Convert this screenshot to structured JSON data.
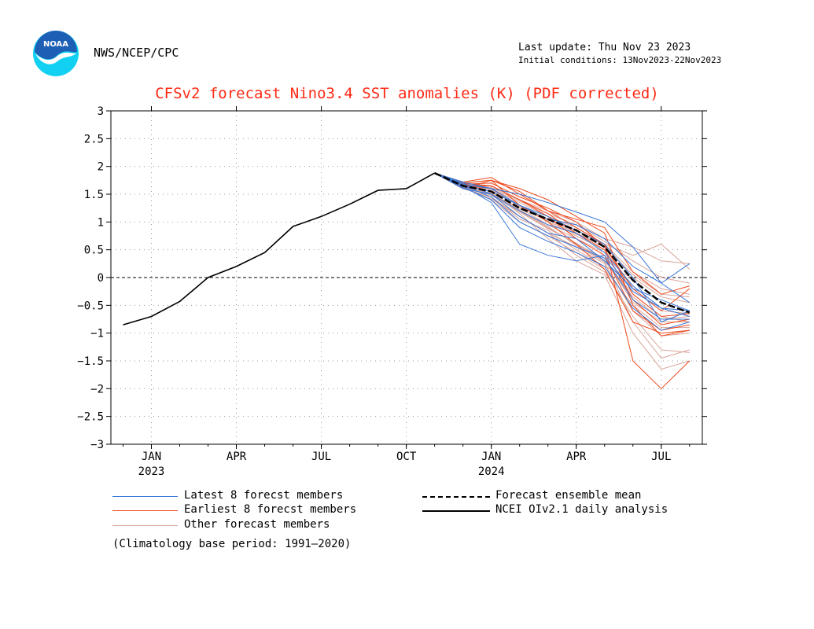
{
  "header": {
    "agency": "NWS/NCEP/CPC",
    "last_update": "Last update: Thu Nov 23 2023",
    "initial_conditions": "Initial conditions: 13Nov2023-22Nov2023",
    "logo_text": "NOAA"
  },
  "colors": {
    "latest": "#3a78d8",
    "earliest": "#ee4a1e",
    "other": "#d9a59a",
    "mean": "#000000",
    "analysis": "#000000",
    "title": "#ff2a14",
    "logo_blue": "#1d5fb5",
    "logo_cyan": "#12d0f2"
  },
  "legend": {
    "latest": "Latest 8 forecst members",
    "earliest": "Earliest 8 forecst members",
    "other": "Other forecast members",
    "mean": "Forecast ensemble mean",
    "analysis": "NCEI OIv2.1 daily analysis",
    "climatology": "(Climatology base period: 1991—2020)"
  },
  "chart_data": {
    "type": "line",
    "title": "CFSv2 forecast Nino3.4 SST anomalies (K) (PDF corrected)",
    "xlabel": "",
    "ylabel": "",
    "ylim": [
      -3,
      3
    ],
    "yticks": [
      3,
      2.5,
      2,
      1.5,
      1,
      0.5,
      0,
      -0.5,
      -1,
      -1.5,
      -2,
      -2.5,
      -3
    ],
    "ytick_labels": [
      "3",
      "2.5",
      "2",
      "1.5",
      "1",
      "0.5",
      "0",
      "−0.5",
      "−1",
      "−1.5",
      "−2",
      "−2.5",
      "−3"
    ],
    "xlim": [
      "2022-12",
      "2024-08"
    ],
    "xticks": [
      {
        "x": "2023-01",
        "label": "JAN",
        "year": "2023"
      },
      {
        "x": "2023-04",
        "label": "APR",
        "year": ""
      },
      {
        "x": "2023-07",
        "label": "JUL",
        "year": ""
      },
      {
        "x": "2023-10",
        "label": "OCT",
        "year": ""
      },
      {
        "x": "2024-01",
        "label": "JAN",
        "year": "2024"
      },
      {
        "x": "2024-04",
        "label": "APR",
        "year": ""
      },
      {
        "x": "2024-07",
        "label": "JUL",
        "year": ""
      }
    ],
    "grid": true,
    "zero_line": true,
    "forecast_months": [
      "2023-11",
      "2023-12",
      "2024-01",
      "2024-02",
      "2024-03",
      "2024-04",
      "2024-05",
      "2024-06",
      "2024-07",
      "2024-08"
    ],
    "analysis": {
      "name": "NCEI OIv2.1 daily analysis",
      "x": [
        "2022-12",
        "2023-01",
        "2023-02",
        "2023-03",
        "2023-04",
        "2023-05",
        "2023-06",
        "2023-07",
        "2023-08",
        "2023-09",
        "2023-10",
        "2023-11"
      ],
      "values": [
        -0.85,
        -0.7,
        -0.43,
        0.0,
        0.2,
        0.45,
        0.92,
        1.1,
        1.32,
        1.57,
        1.6,
        1.88
      ]
    },
    "mean": {
      "name": "Forecast ensemble mean",
      "values": [
        1.88,
        1.65,
        1.55,
        1.25,
        1.05,
        0.85,
        0.55,
        -0.05,
        -0.45,
        -0.63
      ]
    },
    "latest": [
      [
        1.88,
        1.7,
        1.5,
        1.2,
        0.95,
        0.8,
        0.45,
        -0.15,
        -0.55,
        -0.7
      ],
      [
        1.88,
        1.65,
        1.35,
        0.6,
        0.4,
        0.3,
        0.4,
        -0.25,
        -0.55,
        -0.6
      ],
      [
        1.88,
        1.72,
        1.6,
        1.5,
        1.35,
        1.18,
        1.0,
        0.55,
        -0.1,
        -0.45
      ],
      [
        1.88,
        1.6,
        1.5,
        1.1,
        0.8,
        0.7,
        0.3,
        -0.2,
        -0.4,
        -0.6
      ],
      [
        1.88,
        1.65,
        1.55,
        1.3,
        1.1,
        0.85,
        0.6,
        0.0,
        -0.8,
        -0.6
      ],
      [
        1.88,
        1.62,
        1.4,
        0.9,
        0.65,
        0.45,
        0.2,
        -0.55,
        -0.95,
        -0.8
      ],
      [
        1.88,
        1.68,
        1.6,
        1.3,
        1.05,
        0.95,
        0.7,
        0.2,
        -0.1,
        0.25
      ],
      [
        1.88,
        1.66,
        1.45,
        1.0,
        0.75,
        0.55,
        0.35,
        -0.4,
        -0.75,
        -0.75
      ]
    ],
    "earliest": [
      [
        1.88,
        1.72,
        1.8,
        1.5,
        1.2,
        0.9,
        0.6,
        -1.5,
        -2.0,
        -1.5
      ],
      [
        1.88,
        1.7,
        1.75,
        1.6,
        1.4,
        1.1,
        0.8,
        -0.5,
        -1.05,
        -0.95
      ],
      [
        1.88,
        1.68,
        1.7,
        1.45,
        1.25,
        1.0,
        0.55,
        -0.2,
        -0.6,
        -0.2
      ],
      [
        1.88,
        1.7,
        1.75,
        1.55,
        1.2,
        1.05,
        0.9,
        0.1,
        -0.3,
        -0.15
      ],
      [
        1.88,
        1.65,
        1.65,
        1.4,
        1.1,
        0.7,
        0.4,
        -0.6,
        -0.95,
        -0.85
      ],
      [
        1.88,
        1.7,
        1.65,
        1.4,
        1.15,
        0.8,
        0.5,
        -0.4,
        -0.85,
        -0.75
      ],
      [
        1.88,
        1.6,
        1.75,
        1.3,
        1.0,
        0.6,
        0.15,
        -0.8,
        -1.0,
        -0.95
      ],
      [
        1.88,
        1.66,
        1.6,
        1.3,
        1.05,
        0.85,
        0.6,
        -0.3,
        -0.7,
        -0.65
      ]
    ],
    "other": [
      [
        1.88,
        1.65,
        1.5,
        1.2,
        0.9,
        0.6,
        0.3,
        -0.3,
        -0.7,
        -0.8
      ],
      [
        1.88,
        1.6,
        1.45,
        1.1,
        0.8,
        0.4,
        0.1,
        -0.7,
        -1.3,
        -1.35
      ],
      [
        1.88,
        1.7,
        1.6,
        1.35,
        1.1,
        0.9,
        0.6,
        0.1,
        -0.2,
        -0.3
      ],
      [
        1.88,
        1.62,
        1.4,
        1.0,
        0.75,
        0.45,
        0.15,
        -0.5,
        -0.9,
        -0.9
      ],
      [
        1.88,
        1.68,
        1.65,
        1.4,
        1.2,
        1.0,
        0.7,
        0.55,
        0.3,
        0.25
      ],
      [
        1.88,
        1.64,
        1.5,
        1.25,
        0.95,
        0.7,
        0.45,
        -0.15,
        -0.55,
        -0.6
      ],
      [
        1.88,
        1.66,
        1.55,
        1.15,
        0.7,
        0.3,
        0.05,
        -1.0,
        -1.65,
        -1.5
      ],
      [
        1.88,
        1.6,
        1.45,
        1.05,
        0.85,
        0.5,
        0.2,
        0.0,
        -0.35,
        -0.45
      ],
      [
        1.88,
        1.7,
        1.6,
        1.3,
        1.0,
        0.75,
        0.5,
        -0.2,
        -0.6,
        -0.65
      ],
      [
        1.88,
        1.63,
        1.5,
        1.2,
        0.9,
        0.6,
        0.35,
        -0.45,
        -0.8,
        -0.8
      ],
      [
        1.88,
        1.67,
        1.55,
        1.3,
        1.05,
        0.8,
        0.55,
        0.05,
        -0.3,
        -0.35
      ],
      [
        1.88,
        1.61,
        1.42,
        1.1,
        0.8,
        0.55,
        0.25,
        -0.6,
        -1.05,
        -1.0
      ],
      [
        1.88,
        1.69,
        1.62,
        1.38,
        1.15,
        0.95,
        0.65,
        0.3,
        0.0,
        -0.1
      ],
      [
        1.88,
        1.64,
        1.48,
        1.18,
        0.88,
        0.62,
        0.3,
        -0.35,
        -0.75,
        -0.7
      ],
      [
        1.88,
        1.62,
        1.52,
        1.22,
        0.92,
        0.58,
        0.28,
        -0.8,
        -1.45,
        -1.3
      ],
      [
        1.88,
        1.66,
        1.58,
        1.28,
        1.02,
        0.78,
        0.6,
        0.4,
        0.6,
        0.15
      ]
    ]
  }
}
